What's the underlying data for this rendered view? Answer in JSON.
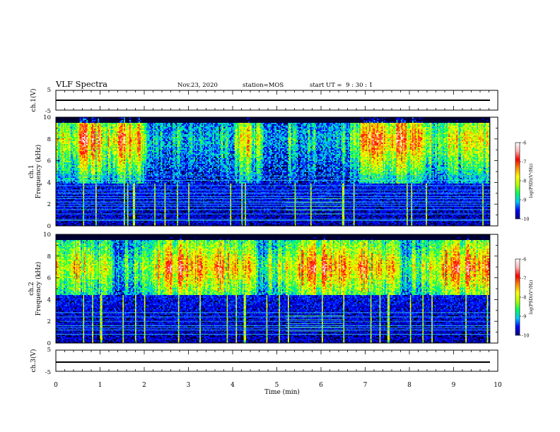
{
  "header": {
    "title": "VLF Spectra",
    "date": "Nov.23, 2020",
    "station": "station=MOS",
    "start": "start UT =  9 : 30 : 1"
  },
  "chart_data": {
    "type": "heatmap",
    "xlabel": "Time (min)",
    "xlim": [
      0,
      10
    ],
    "x_ticks": [
      "0",
      "1",
      "2",
      "3",
      "4",
      "5",
      "6",
      "7",
      "8",
      "9",
      "10"
    ],
    "data_end_min": 9.83,
    "panels": [
      {
        "kind": "waveform",
        "ylabel": "ch.1(V)",
        "ylim": [
          -5,
          5
        ],
        "y_ticks": [
          "5",
          "-5"
        ],
        "level_v": 0
      },
      {
        "kind": "spectrogram",
        "ylabel": "ch.1\nFrequency (kHz)",
        "ylim": [
          0,
          10
        ],
        "y_ticks": [
          "0",
          "2",
          "4",
          "6",
          "8",
          "10"
        ],
        "band_center_khz": 8.0,
        "band_lower_edge_khz": 4.0,
        "tones_khz": [
          0.5,
          0.6,
          1.1,
          1.5,
          1.8,
          2.0,
          2.2,
          2.5,
          2.7,
          3.0,
          3.3,
          3.7,
          4.2,
          4.6
        ]
      },
      {
        "kind": "spectrogram",
        "ylabel": "ch.2\nFrequency (kHz)",
        "ylim": [
          0,
          10
        ],
        "y_ticks": [
          "0",
          "2",
          "4",
          "6",
          "8",
          "10"
        ],
        "band_center_khz": 7.0,
        "band_lower_edge_khz": 4.5,
        "tones_khz": [
          0.8,
          1.2,
          1.4,
          1.6,
          2.0,
          2.4,
          2.8
        ]
      },
      {
        "kind": "waveform",
        "ylabel": "ch.3(V)",
        "ylim": [
          -5,
          5
        ],
        "y_ticks": [
          "5",
          "-5"
        ],
        "level_v": -1
      }
    ],
    "colorbar": {
      "label": "log(PSD)(V²/Hz)",
      "range": [
        -10,
        -6
      ],
      "ticks": [
        "-6",
        "-7",
        "-8",
        "-9",
        "-10"
      ],
      "colors": [
        "#000080",
        "#0000ff",
        "#00c8ff",
        "#00ff60",
        "#b0ff00",
        "#ffff00",
        "#ff8c00",
        "#ff0000",
        "#ffb4b4",
        "#ffffff"
      ]
    }
  }
}
